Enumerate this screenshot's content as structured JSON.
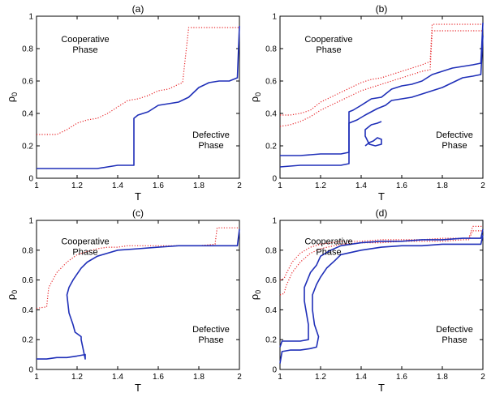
{
  "figure": {
    "background": "#ffffff"
  },
  "chart_data": [
    {
      "type": "line",
      "title": "(a)",
      "xlabel": "T",
      "ylabel": "ρ",
      "ylabel_sub": "0",
      "xlim": [
        1,
        2
      ],
      "ylim": [
        0,
        1
      ],
      "x_ticks": [
        1,
        1.2,
        1.4,
        1.6,
        1.8,
        2
      ],
      "y_ticks": [
        0,
        0.2,
        0.4,
        0.6,
        0.8,
        1
      ],
      "x_tick_labels": [
        "1",
        "1.2",
        "1.4",
        "1.6",
        "1.8",
        "2"
      ],
      "y_tick_labels": [
        "0",
        "0.2",
        "0.4",
        "0.6",
        "0.8",
        "1"
      ],
      "annotations": [
        {
          "lines": [
            "Cooperative",
            "Phase"
          ],
          "at": [
            1.24,
            0.84
          ]
        },
        {
          "lines": [
            "Defective",
            "Phase"
          ],
          "at": [
            1.86,
            0.25
          ]
        }
      ],
      "series": [
        {
          "color": "#e8262a",
          "style": "dotted",
          "x": [
            1.0,
            1.05,
            1.1,
            1.15,
            1.2,
            1.25,
            1.3,
            1.35,
            1.4,
            1.45,
            1.5,
            1.55,
            1.6,
            1.65,
            1.7,
            1.72,
            1.75,
            1.8,
            1.85,
            1.9,
            1.95,
            2.0
          ],
          "y": [
            0.27,
            0.27,
            0.27,
            0.3,
            0.34,
            0.36,
            0.37,
            0.4,
            0.44,
            0.48,
            0.49,
            0.51,
            0.54,
            0.55,
            0.58,
            0.59,
            0.93,
            0.93,
            0.93,
            0.93,
            0.93,
            0.93
          ]
        },
        {
          "color": "#1f2fb8",
          "style": "solid",
          "x": [
            1.0,
            1.3,
            1.35,
            1.4,
            1.45,
            1.48,
            1.48,
            1.5,
            1.55,
            1.6,
            1.65,
            1.7,
            1.75,
            1.8,
            1.85,
            1.9,
            1.95,
            1.99,
            2.0
          ],
          "y": [
            0.06,
            0.06,
            0.07,
            0.08,
            0.08,
            0.08,
            0.37,
            0.39,
            0.41,
            0.45,
            0.46,
            0.47,
            0.5,
            0.56,
            0.59,
            0.6,
            0.6,
            0.62,
            0.94
          ]
        }
      ]
    },
    {
      "type": "line",
      "title": "(b)",
      "xlabel": "T",
      "ylabel": "ρ",
      "ylabel_sub": "0",
      "xlim": [
        1,
        2
      ],
      "ylim": [
        0,
        1
      ],
      "x_ticks": [
        1,
        1.2,
        1.4,
        1.6,
        1.8,
        2
      ],
      "y_ticks": [
        0,
        0.2,
        0.4,
        0.6,
        0.8,
        1
      ],
      "x_tick_labels": [
        "1",
        "1.2",
        "1.4",
        "1.6",
        "1.8",
        "2"
      ],
      "y_tick_labels": [
        "0",
        "0.2",
        "0.4",
        "0.6",
        "0.8",
        "1"
      ],
      "annotations": [
        {
          "lines": [
            "Cooperative",
            "Phase"
          ],
          "at": [
            1.24,
            0.84
          ]
        },
        {
          "lines": [
            "Defective",
            "Phase"
          ],
          "at": [
            1.86,
            0.25
          ]
        }
      ],
      "series": [
        {
          "color": "#e8262a",
          "style": "dotted",
          "x": [
            1.0,
            1.05,
            1.1,
            1.15,
            1.2,
            1.25,
            1.3,
            1.35,
            1.4,
            1.45,
            1.5,
            1.55,
            1.6,
            1.65,
            1.7,
            1.74,
            1.75,
            1.8,
            1.85,
            1.9,
            1.95,
            2.0
          ],
          "y": [
            0.39,
            0.39,
            0.4,
            0.42,
            0.47,
            0.5,
            0.53,
            0.56,
            0.59,
            0.61,
            0.62,
            0.64,
            0.66,
            0.68,
            0.7,
            0.72,
            0.95,
            0.95,
            0.95,
            0.95,
            0.95,
            0.95
          ]
        },
        {
          "color": "#e8262a",
          "style": "dotted",
          "x": [
            1.0,
            1.05,
            1.1,
            1.15,
            1.2,
            1.25,
            1.3,
            1.35,
            1.4,
            1.45,
            1.5,
            1.55,
            1.6,
            1.65,
            1.7,
            1.74,
            1.75,
            1.8,
            1.85,
            1.9,
            1.95,
            2.0
          ],
          "y": [
            0.32,
            0.33,
            0.35,
            0.38,
            0.42,
            0.45,
            0.48,
            0.51,
            0.54,
            0.56,
            0.58,
            0.6,
            0.62,
            0.64,
            0.66,
            0.67,
            0.91,
            0.91,
            0.91,
            0.91,
            0.91,
            0.91
          ]
        },
        {
          "color": "#1f2fb8",
          "style": "solid",
          "x": [
            1.0,
            1.1,
            1.2,
            1.3,
            1.34,
            1.34,
            1.36,
            1.4,
            1.45,
            1.5,
            1.55,
            1.6,
            1.65,
            1.7,
            1.75,
            1.8,
            1.85,
            1.9,
            1.95,
            1.99,
            2.0
          ],
          "y": [
            0.14,
            0.14,
            0.15,
            0.15,
            0.16,
            0.41,
            0.42,
            0.45,
            0.49,
            0.5,
            0.55,
            0.57,
            0.58,
            0.6,
            0.64,
            0.66,
            0.68,
            0.69,
            0.7,
            0.71,
            0.96
          ]
        },
        {
          "color": "#1f2fb8",
          "style": "solid",
          "x": [
            1.0,
            1.1,
            1.2,
            1.3,
            1.34,
            1.34,
            1.38,
            1.42,
            1.48,
            1.52,
            1.55,
            1.6,
            1.65,
            1.7,
            1.75,
            1.8,
            1.85,
            1.9,
            1.95,
            1.99,
            2.0
          ],
          "y": [
            0.07,
            0.08,
            0.08,
            0.08,
            0.09,
            0.34,
            0.36,
            0.39,
            0.43,
            0.45,
            0.48,
            0.49,
            0.5,
            0.52,
            0.54,
            0.56,
            0.59,
            0.62,
            0.63,
            0.64,
            0.88
          ]
        },
        {
          "color": "#1f2fb8",
          "style": "solid",
          "x": [
            1.42,
            1.44,
            1.46,
            1.48,
            1.5,
            1.5,
            1.47,
            1.44,
            1.42,
            1.42,
            1.45,
            1.48,
            1.5
          ],
          "y": [
            0.2,
            0.22,
            0.23,
            0.25,
            0.24,
            0.21,
            0.2,
            0.21,
            0.26,
            0.3,
            0.33,
            0.34,
            0.35
          ]
        }
      ]
    },
    {
      "type": "line",
      "title": "(c)",
      "xlabel": "T",
      "ylabel": "ρ",
      "ylabel_sub": "0",
      "xlim": [
        1,
        2
      ],
      "ylim": [
        0,
        1
      ],
      "x_ticks": [
        1,
        1.2,
        1.4,
        1.6,
        1.8,
        2
      ],
      "y_ticks": [
        0,
        0.2,
        0.4,
        0.6,
        0.8,
        1
      ],
      "x_tick_labels": [
        "1",
        "1.2",
        "1.4",
        "1.6",
        "1.8",
        "2"
      ],
      "y_tick_labels": [
        "0",
        "0.2",
        "0.4",
        "0.6",
        "0.8",
        "1"
      ],
      "annotations": [
        {
          "lines": [
            "Cooperative",
            "Phase"
          ],
          "at": [
            1.24,
            0.84
          ]
        },
        {
          "lines": [
            "Defective",
            "Phase"
          ],
          "at": [
            1.86,
            0.25
          ]
        }
      ],
      "series": [
        {
          "color": "#e8262a",
          "style": "dotted",
          "x": [
            1.0,
            1.05,
            1.06,
            1.1,
            1.15,
            1.2,
            1.25,
            1.3,
            1.35,
            1.4,
            1.45,
            1.5,
            1.6,
            1.7,
            1.8,
            1.88,
            1.89,
            1.95,
            2.0
          ],
          "y": [
            0.41,
            0.42,
            0.55,
            0.65,
            0.72,
            0.77,
            0.79,
            0.81,
            0.82,
            0.82,
            0.83,
            0.83,
            0.83,
            0.83,
            0.83,
            0.84,
            0.95,
            0.95,
            0.95
          ]
        },
        {
          "color": "#1f2fb8",
          "style": "solid",
          "x": [
            1.0,
            1.05,
            1.1,
            1.15,
            1.2,
            1.24,
            1.24,
            1.22,
            1.22,
            1.19,
            1.18,
            1.16,
            1.15,
            1.16,
            1.18,
            1.2,
            1.22,
            1.25,
            1.3,
            1.35,
            1.4,
            1.5,
            1.6,
            1.7,
            1.8,
            1.9,
            1.99,
            2.0
          ],
          "y": [
            0.07,
            0.07,
            0.08,
            0.08,
            0.09,
            0.1,
            0.07,
            0.2,
            0.22,
            0.25,
            0.3,
            0.38,
            0.5,
            0.55,
            0.6,
            0.64,
            0.68,
            0.72,
            0.76,
            0.78,
            0.8,
            0.81,
            0.82,
            0.83,
            0.83,
            0.83,
            0.83,
            0.94
          ]
        }
      ]
    },
    {
      "type": "line",
      "title": "(d)",
      "xlabel": "T",
      "ylabel": "ρ",
      "ylabel_sub": "0",
      "xlim": [
        1,
        2
      ],
      "ylim": [
        0,
        1
      ],
      "x_ticks": [
        1,
        1.2,
        1.4,
        1.6,
        1.8,
        2
      ],
      "y_ticks": [
        0,
        0.2,
        0.4,
        0.6,
        0.8,
        1
      ],
      "x_tick_labels": [
        "1",
        "1.2",
        "1.4",
        "1.6",
        "1.8",
        "2"
      ],
      "y_tick_labels": [
        "0",
        "0.2",
        "0.4",
        "0.6",
        "0.8",
        "1"
      ],
      "annotations": [
        {
          "lines": [
            "Cooperative",
            "Phase"
          ],
          "at": [
            1.24,
            0.84
          ]
        },
        {
          "lines": [
            "Defective",
            "Phase"
          ],
          "at": [
            1.86,
            0.25
          ]
        }
      ],
      "series": [
        {
          "color": "#e8262a",
          "style": "dotted",
          "x": [
            1.0,
            1.02,
            1.03,
            1.06,
            1.1,
            1.15,
            1.2,
            1.3,
            1.4,
            1.5,
            1.6,
            1.7,
            1.8,
            1.9,
            1.93,
            1.95,
            2.0
          ],
          "y": [
            0.6,
            0.61,
            0.64,
            0.72,
            0.78,
            0.82,
            0.84,
            0.86,
            0.86,
            0.87,
            0.87,
            0.87,
            0.88,
            0.88,
            0.88,
            0.96,
            0.96
          ]
        },
        {
          "color": "#e8262a",
          "style": "dotted",
          "x": [
            1.0,
            1.02,
            1.03,
            1.06,
            1.1,
            1.15,
            1.2,
            1.3,
            1.4,
            1.5,
            1.6,
            1.7,
            1.8,
            1.9,
            1.93,
            1.95,
            2.0
          ],
          "y": [
            0.5,
            0.51,
            0.56,
            0.65,
            0.72,
            0.78,
            0.81,
            0.84,
            0.85,
            0.85,
            0.86,
            0.86,
            0.86,
            0.87,
            0.87,
            0.93,
            0.93
          ]
        },
        {
          "color": "#1f2fb8",
          "style": "solid",
          "x": [
            1.0,
            1.01,
            1.05,
            1.1,
            1.14,
            1.14,
            1.12,
            1.12,
            1.15,
            1.18,
            1.2,
            1.25,
            1.3,
            1.4,
            1.5,
            1.6,
            1.7,
            1.8,
            1.9,
            1.99,
            2.0
          ],
          "y": [
            0.15,
            0.19,
            0.19,
            0.19,
            0.2,
            0.3,
            0.46,
            0.55,
            0.65,
            0.7,
            0.76,
            0.8,
            0.83,
            0.85,
            0.86,
            0.86,
            0.87,
            0.87,
            0.88,
            0.88,
            0.94
          ]
        },
        {
          "color": "#1f2fb8",
          "style": "solid",
          "x": [
            1.0,
            1.01,
            1.05,
            1.1,
            1.15,
            1.18,
            1.19,
            1.17,
            1.16,
            1.16,
            1.18,
            1.2,
            1.23,
            1.27,
            1.3,
            1.4,
            1.5,
            1.6,
            1.7,
            1.8,
            1.9,
            1.99,
            2.0
          ],
          "y": [
            0.04,
            0.12,
            0.13,
            0.13,
            0.14,
            0.15,
            0.22,
            0.3,
            0.4,
            0.5,
            0.57,
            0.62,
            0.68,
            0.73,
            0.77,
            0.8,
            0.82,
            0.83,
            0.83,
            0.84,
            0.84,
            0.84,
            0.9
          ]
        }
      ]
    }
  ]
}
